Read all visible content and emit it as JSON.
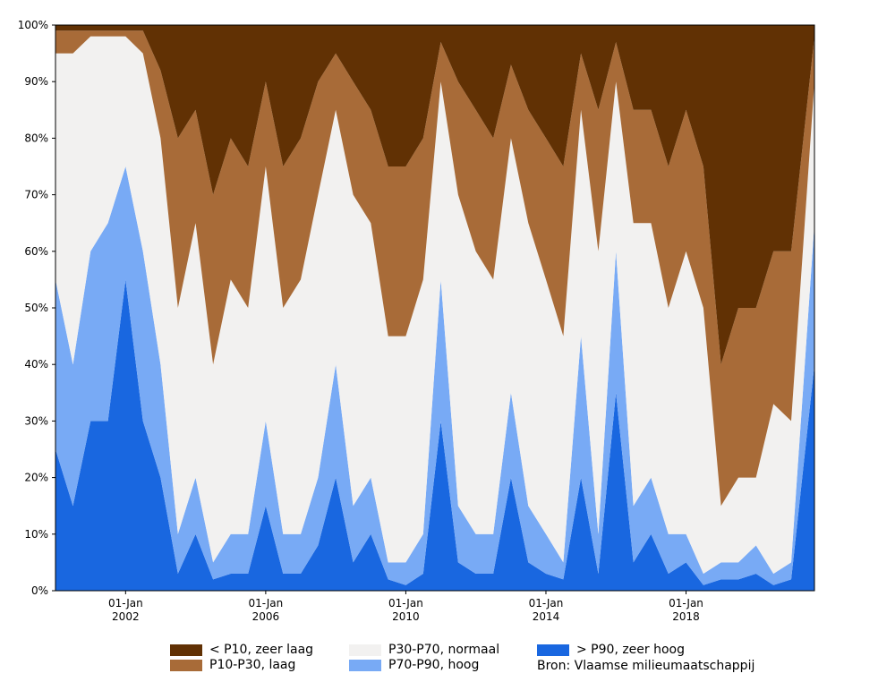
{
  "chart_data": {
    "type": "area",
    "stacked": true,
    "normalized": true,
    "title": "",
    "xlabel": "",
    "ylabel": "",
    "ylim": [
      0,
      100
    ],
    "y_ticks": [
      "0%",
      "10%",
      "20%",
      "30%",
      "40%",
      "50%",
      "60%",
      "70%",
      "80%",
      "90%",
      "100%"
    ],
    "x_ticks": [
      {
        "date": "2002-01-01",
        "label_top": "01-Jan",
        "label_bottom": "2002"
      },
      {
        "date": "2006-01-01",
        "label_top": "01-Jan",
        "label_bottom": "2006"
      },
      {
        "date": "2010-01-01",
        "label_top": "01-Jan",
        "label_bottom": "2010"
      },
      {
        "date": "2014-01-01",
        "label_top": "01-Jan",
        "label_bottom": "2014"
      },
      {
        "date": "2018-01-01",
        "label_top": "01-Jan",
        "label_bottom": "2018"
      }
    ],
    "xlim": [
      "2000-01-01",
      "2021-09-01"
    ],
    "grid": false,
    "legend_position": "bottom",
    "series_order_bottom_to_top": [
      "> P90, zeer hoog",
      "P70-P90, hoog",
      "P30-P70, normaal",
      "P10-P30, laag",
      "< P10, zeer laag"
    ],
    "x": [
      "2000-01",
      "2000-07",
      "2001-01",
      "2001-07",
      "2002-01",
      "2002-07",
      "2003-01",
      "2003-07",
      "2004-01",
      "2004-07",
      "2005-01",
      "2005-07",
      "2006-01",
      "2006-07",
      "2007-01",
      "2007-07",
      "2008-01",
      "2008-07",
      "2009-01",
      "2009-07",
      "2010-01",
      "2010-07",
      "2011-01",
      "2011-07",
      "2012-01",
      "2012-07",
      "2013-01",
      "2013-07",
      "2014-01",
      "2014-07",
      "2015-01",
      "2015-07",
      "2016-01",
      "2016-07",
      "2017-01",
      "2017-07",
      "2018-01",
      "2018-07",
      "2019-01",
      "2019-07",
      "2020-01",
      "2020-07",
      "2021-01",
      "2021-07"
    ],
    "series": [
      {
        "name": "> P90, zeer hoog",
        "color": "#1967e0",
        "values": [
          25,
          15,
          30,
          30,
          55,
          30,
          20,
          3,
          10,
          2,
          3,
          3,
          15,
          3,
          3,
          8,
          20,
          5,
          10,
          2,
          1,
          3,
          30,
          5,
          3,
          3,
          20,
          5,
          3,
          2,
          20,
          3,
          35,
          5,
          10,
          3,
          5,
          1,
          2,
          2,
          3,
          1,
          2,
          40
        ]
      },
      {
        "name": "P70-P90, hoog",
        "color": "#78aaf5",
        "values": [
          30,
          25,
          30,
          35,
          20,
          30,
          20,
          7,
          10,
          3,
          7,
          7,
          15,
          7,
          7,
          12,
          20,
          10,
          10,
          3,
          4,
          7,
          25,
          10,
          7,
          7,
          15,
          10,
          7,
          3,
          25,
          7,
          25,
          10,
          10,
          7,
          5,
          2,
          3,
          3,
          5,
          2,
          3,
          25
        ]
      },
      {
        "name": "P30-P70, normaal",
        "color": "#f2f1f0",
        "values": [
          40,
          55,
          38,
          33,
          23,
          35,
          40,
          40,
          45,
          35,
          45,
          40,
          45,
          40,
          45,
          50,
          45,
          55,
          45,
          40,
          40,
          45,
          35,
          55,
          50,
          45,
          45,
          50,
          45,
          40,
          40,
          50,
          30,
          50,
          45,
          40,
          50,
          47,
          10,
          15,
          12,
          30,
          25,
          25
        ]
      },
      {
        "name": "P10-P30, laag",
        "color": "#a86b38",
        "values": [
          4,
          4,
          1,
          1,
          1,
          4,
          12,
          30,
          20,
          30,
          25,
          25,
          15,
          25,
          25,
          20,
          10,
          20,
          20,
          30,
          30,
          25,
          7,
          20,
          25,
          25,
          13,
          20,
          25,
          30,
          10,
          25,
          7,
          20,
          20,
          25,
          25,
          25,
          25,
          30,
          30,
          27,
          30,
          8
        ]
      },
      {
        "name": "< P10, zeer laag",
        "color": "#613104",
        "values": [
          1,
          1,
          1,
          1,
          1,
          1,
          8,
          20,
          15,
          30,
          20,
          25,
          10,
          25,
          20,
          10,
          5,
          10,
          15,
          25,
          25,
          20,
          3,
          10,
          15,
          20,
          7,
          15,
          20,
          25,
          5,
          15,
          3,
          15,
          15,
          25,
          15,
          25,
          60,
          50,
          50,
          40,
          40,
          2
        ]
      }
    ],
    "legend": [
      {
        "label": "< P10, zeer laag",
        "color": "#613104"
      },
      {
        "label": "P10-P30, laag",
        "color": "#a86b38"
      },
      {
        "label": "P30-P70, normaal",
        "color": "#f2f1f0"
      },
      {
        "label": "P70-P90, hoog",
        "color": "#78aaf5"
      },
      {
        "label": "> P90, zeer hoog",
        "color": "#1967e0"
      }
    ],
    "source_note": "Bron: Vlaamse milieumaatschappij"
  }
}
